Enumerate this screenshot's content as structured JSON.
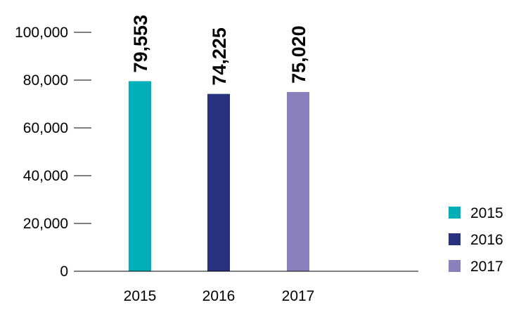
{
  "chart_data": {
    "type": "bar",
    "title": "",
    "xlabel": "",
    "ylabel": "",
    "categories": [
      "2015",
      "2016",
      "2017"
    ],
    "values": [
      79553,
      74225,
      75020
    ],
    "value_labels": [
      "79,553",
      "74,225",
      "75,020"
    ],
    "ylim": [
      0,
      100000
    ],
    "y_ticks": [
      0,
      20000,
      40000,
      60000,
      80000,
      100000
    ],
    "y_tick_labels": [
      "0",
      "20,000",
      "40,000",
      "60,000",
      "80,000",
      "100,000"
    ],
    "grid": false,
    "legend_position": "bottom-right",
    "legend": [
      "2015",
      "2016",
      "2017"
    ],
    "colors": [
      "#00b0b9",
      "#29327f",
      "#8b80bb"
    ],
    "axis_color": "#000000"
  }
}
